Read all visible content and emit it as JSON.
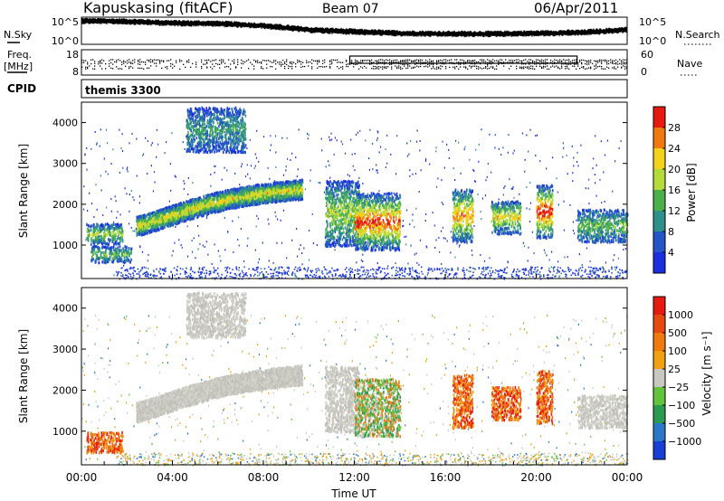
{
  "header": {
    "title": "Kapuskasing (fitACF)",
    "beam": "Beam 07",
    "date": "06/Apr/2011"
  },
  "side_labels": {
    "nsky": "N.Sky",
    "nsearch": "N.Search",
    "freq": "Freq.",
    "freq_unit": "[MHz]",
    "nave": "Nave",
    "cpid": "CPID",
    "cpid_value": "themis 3300"
  },
  "chart_data": [
    {
      "type": "line",
      "name": "noise",
      "y_ticks_left": [
        "10^5",
        "10^0"
      ],
      "y_ticks_right": [
        "10^5",
        "10^0"
      ],
      "trend": [
        {
          "t": 0,
          "v": 0.88
        },
        {
          "t": 2,
          "v": 0.86
        },
        {
          "t": 4,
          "v": 0.8
        },
        {
          "t": 6,
          "v": 0.78
        },
        {
          "t": 8,
          "v": 0.7
        },
        {
          "t": 10,
          "v": 0.55
        },
        {
          "t": 12,
          "v": 0.48
        },
        {
          "t": 14,
          "v": 0.42
        },
        {
          "t": 16,
          "v": 0.4
        },
        {
          "t": 18,
          "v": 0.4
        },
        {
          "t": 20,
          "v": 0.42
        },
        {
          "t": 22,
          "v": 0.45
        },
        {
          "t": 24,
          "v": 0.55
        }
      ]
    },
    {
      "type": "scatter",
      "name": "frequency-nave",
      "y_ticks_left": [
        "18",
        "8"
      ],
      "y_ticks_right": [
        "60",
        "0"
      ],
      "nave_box": {
        "t_start": 11.8,
        "t_end": 21.8
      }
    },
    {
      "type": "heatmap",
      "name": "power",
      "ylabel": "Slant Range [km]",
      "yticks": [
        1000,
        2000,
        3000,
        4000
      ],
      "ylim": [
        180,
        4500
      ],
      "colorbar_label": "Power [dB]",
      "colorbar_ticks": [
        "28",
        "24",
        "20",
        "16",
        "12",
        "8",
        "4"
      ],
      "colors": [
        "#1b2fe0",
        "#2456c8",
        "#2f8f8a",
        "#4bb04a",
        "#b3dc3a",
        "#f2d21a",
        "#f07a10",
        "#e61a10"
      ],
      "clusters": [
        {
          "t0": 0.2,
          "t1": 1.8,
          "r0": 1050,
          "r1": 1550,
          "strength": 0.45
        },
        {
          "t0": 0.4,
          "t1": 2.2,
          "r0": 600,
          "r1": 1000,
          "strength": 0.35
        },
        {
          "t0": 2.4,
          "t1": 9.7,
          "r0": 1300,
          "r1": 2700,
          "strength": 0.55,
          "arc": true
        },
        {
          "t0": 4.6,
          "t1": 7.2,
          "r0": 3300,
          "r1": 4400,
          "strength": 0.25
        },
        {
          "t0": 10.7,
          "t1": 12.2,
          "r0": 1000,
          "r1": 2600,
          "strength": 0.45
        },
        {
          "t0": 12.0,
          "t1": 14.0,
          "r0": 900,
          "r1": 2300,
          "strength": 0.8
        },
        {
          "t0": 16.3,
          "t1": 17.2,
          "r0": 1100,
          "r1": 2400,
          "strength": 0.7
        },
        {
          "t0": 18.0,
          "t1": 19.3,
          "r0": 1300,
          "r1": 2100,
          "strength": 0.55
        },
        {
          "t0": 20.0,
          "t1": 20.7,
          "r0": 1200,
          "r1": 2500,
          "strength": 0.85
        },
        {
          "t0": 21.8,
          "t1": 24.0,
          "r0": 1100,
          "r1": 1900,
          "strength": 0.35
        }
      ]
    },
    {
      "type": "heatmap",
      "name": "velocity",
      "ylabel": "Slant Range [km]",
      "yticks": [
        1000,
        2000,
        3000,
        4000
      ],
      "ylim": [
        180,
        4500
      ],
      "xlabel": "Time UT",
      "xticks": [
        "00:00",
        "04:00",
        "08:00",
        "12:00",
        "16:00",
        "20:00",
        "00:00"
      ],
      "xlim": [
        0,
        24
      ],
      "colorbar_label": "Velocity [m s⁻¹]",
      "colorbar_ticks": [
        "1000",
        "500",
        "100",
        "25",
        "−25",
        "−100",
        "−500",
        "−1000"
      ],
      "colors": [
        "#1a3fd6",
        "#2b78c8",
        "#2b9a52",
        "#62c43c",
        "#c8c8c0",
        "#f0a010",
        "#f07a10",
        "#e64a10",
        "#e61a10"
      ],
      "clusters": [
        {
          "t0": 0.2,
          "t1": 1.8,
          "r0": 500,
          "r1": 1000,
          "kind": "orange"
        },
        {
          "t0": 2.4,
          "t1": 9.7,
          "r0": 1300,
          "r1": 2700,
          "kind": "gray",
          "arc": true
        },
        {
          "t0": 4.6,
          "t1": 7.2,
          "r0": 3300,
          "r1": 4400,
          "kind": "gray"
        },
        {
          "t0": 10.7,
          "t1": 12.2,
          "r0": 1000,
          "r1": 2600,
          "kind": "gray"
        },
        {
          "t0": 12.0,
          "t1": 14.0,
          "r0": 900,
          "r1": 2300,
          "kind": "green"
        },
        {
          "t0": 16.3,
          "t1": 17.2,
          "r0": 1100,
          "r1": 2400,
          "kind": "orange"
        },
        {
          "t0": 18.0,
          "t1": 19.3,
          "r0": 1300,
          "r1": 2100,
          "kind": "orange"
        },
        {
          "t0": 20.0,
          "t1": 20.7,
          "r0": 1200,
          "r1": 2500,
          "kind": "orange"
        },
        {
          "t0": 21.8,
          "t1": 24.0,
          "r0": 1100,
          "r1": 1900,
          "kind": "gray"
        }
      ]
    }
  ]
}
